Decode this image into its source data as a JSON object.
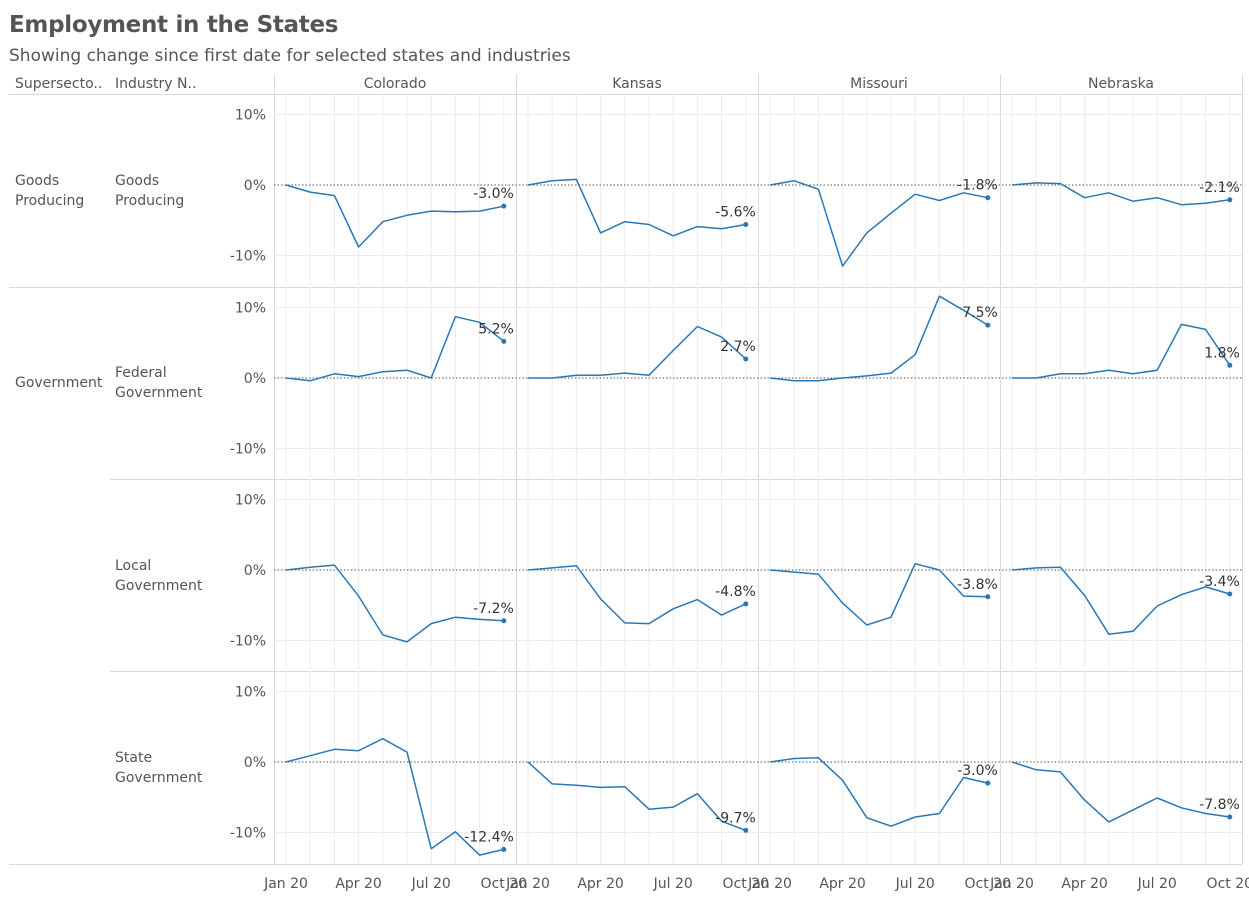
{
  "title": "Employment in the States",
  "subtitle": "Showing change since first date for selected states and industries",
  "headers": {
    "supersector": "Supersecto..",
    "industry": "Industry N.."
  },
  "colors": {
    "line": "#2a77b6",
    "grid": "#ececec",
    "divider": "#d9d9d9",
    "zero": "#555555",
    "text": "#555555"
  },
  "rows": [
    {
      "supersector": "Goods Producing",
      "industry": "Goods Producing"
    },
    {
      "supersector": "Government",
      "industry": "Federal Government"
    },
    {
      "supersector": "",
      "industry": "Local Government"
    },
    {
      "supersector": "",
      "industry": "State Government"
    }
  ],
  "chart_data": {
    "type": "line",
    "columns": [
      "Colorado",
      "Kansas",
      "Missouri",
      "Nebraska"
    ],
    "x": [
      "Jan 20",
      "Feb 20",
      "Mar 20",
      "Apr 20",
      "May 20",
      "Jun 20",
      "Jul 20",
      "Aug 20",
      "Sep 20",
      "Oct 20"
    ],
    "x_tick_labels": [
      "Jan 20",
      "Apr 20",
      "Jul 20",
      "Oct 20"
    ],
    "y_tick_labels": [
      "10%",
      "0%",
      "-10%"
    ],
    "ylim": [
      -15,
      12
    ],
    "grid": true,
    "panels": [
      [
        {
          "values": [
            0,
            -1.0,
            -1.5,
            -8.8,
            -5.2,
            -4.3,
            -3.7,
            -3.8,
            -3.7,
            -3.0
          ],
          "label": "-3.0%"
        },
        {
          "values": [
            0,
            0.6,
            0.8,
            -6.8,
            -5.2,
            -5.6,
            -7.2,
            -5.9,
            -6.2,
            -5.6
          ],
          "label": "-5.6%"
        },
        {
          "values": [
            0,
            0.6,
            -0.6,
            -11.5,
            -6.8,
            -4.0,
            -1.3,
            -2.2,
            -1.1,
            -1.8
          ],
          "label": "-1.8%"
        },
        {
          "values": [
            0,
            0.3,
            0.2,
            -1.8,
            -1.1,
            -2.3,
            -1.8,
            -2.8,
            -2.6,
            -2.1
          ],
          "label": "-2.1%"
        }
      ],
      [
        {
          "values": [
            0,
            -0.4,
            0.6,
            0.2,
            0.9,
            1.1,
            0,
            8.7,
            7.9,
            5.2
          ],
          "label": "5.2%"
        },
        {
          "values": [
            0,
            0,
            0.4,
            0.4,
            0.7,
            0.4,
            3.9,
            7.3,
            5.8,
            2.7
          ],
          "label": "2.7%"
        },
        {
          "values": [
            0,
            -0.4,
            -0.4,
            0,
            0.3,
            0.7,
            3.3,
            11.6,
            9.6,
            7.5
          ],
          "label": "7.5%"
        },
        {
          "values": [
            0,
            0,
            0.6,
            0.6,
            1.1,
            0.6,
            1.1,
            7.6,
            6.9,
            1.8
          ],
          "label": "1.8%"
        }
      ],
      [
        {
          "values": [
            0,
            0.4,
            0.7,
            -3.7,
            -9.2,
            -10.2,
            -7.6,
            -6.7,
            -7.0,
            -7.2
          ],
          "label": "-7.2%"
        },
        {
          "values": [
            0,
            0.3,
            0.6,
            -4.1,
            -7.5,
            -7.6,
            -5.5,
            -4.2,
            -6.4,
            -4.8
          ],
          "label": "-4.8%"
        },
        {
          "values": [
            0,
            -0.3,
            -0.6,
            -4.7,
            -7.8,
            -6.7,
            0.9,
            0,
            -3.7,
            -3.8
          ],
          "label": "-3.8%"
        },
        {
          "values": [
            0,
            0.3,
            0.4,
            -3.6,
            -9.1,
            -8.7,
            -5.1,
            -3.5,
            -2.4,
            -3.4
          ],
          "label": "-3.4%"
        }
      ],
      [
        {
          "values": [
            0,
            0.9,
            1.8,
            1.6,
            3.3,
            1.4,
            -12.3,
            -9.9,
            -13.2,
            -12.4
          ],
          "label": "-12.4%"
        },
        {
          "values": [
            0,
            -3.1,
            -3.3,
            -3.6,
            -3.5,
            -6.7,
            -6.4,
            -4.5,
            -8.4,
            -9.7
          ],
          "label": "-9.7%"
        },
        {
          "values": [
            0,
            0.5,
            0.6,
            -2.6,
            -7.9,
            -9.1,
            -7.8,
            -7.3,
            -2.2,
            -3.0
          ],
          "label": "-3.0%"
        },
        {
          "values": [
            0,
            -1.1,
            -1.4,
            -5.4,
            -8.5,
            -6.8,
            -5.1,
            -6.5,
            -7.3,
            -7.8
          ],
          "label": "-7.8%"
        }
      ]
    ]
  }
}
